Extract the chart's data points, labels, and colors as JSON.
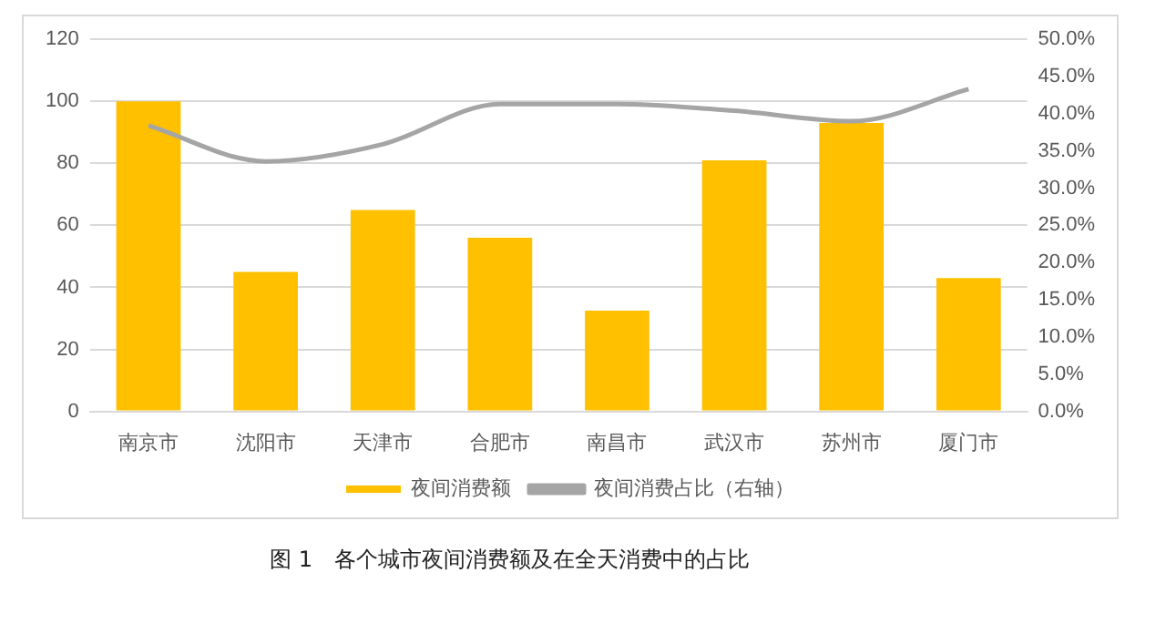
{
  "chart_data": {
    "type": "bar",
    "categories": [
      "南京市",
      "沈阳市",
      "天津市",
      "合肥市",
      "南昌市",
      "武汉市",
      "苏州市",
      "厦门市"
    ],
    "series": [
      {
        "name": "夜间消费额",
        "color": "#ffc000",
        "values": [
          100,
          45,
          65,
          56,
          32.5,
          81,
          93,
          43
        ]
      },
      {
        "name": "夜间消费占比（右轴）",
        "type": "line",
        "axis": "y2",
        "color": "#a5a5a5",
        "values": [
          38.4,
          33.6,
          35.9,
          41.3,
          41.3,
          40.4,
          39.0,
          43.3
        ]
      }
    ],
    "ylim": [
      0,
      120
    ],
    "yticks": [
      0,
      20,
      40,
      60,
      80,
      100,
      120
    ],
    "y2lim": [
      0,
      50
    ],
    "y2ticks": [
      {
        "value": 0,
        "label": "0.0%"
      },
      {
        "value": 5,
        "label": "5.0%"
      },
      {
        "value": 10,
        "label": "10.0%"
      },
      {
        "value": 15,
        "label": "15.0%"
      },
      {
        "value": 20,
        "label": "20.0%"
      },
      {
        "value": 25,
        "label": "25.0%"
      },
      {
        "value": 30,
        "label": "30.0%"
      },
      {
        "value": 35,
        "label": "35.0%"
      },
      {
        "value": 40,
        "label": "40.0%"
      },
      {
        "value": 45,
        "label": "45.0%"
      },
      {
        "value": 50,
        "label": "50.0%"
      }
    ],
    "grid": "y",
    "legend": "bottom",
    "marker": "none",
    "line_style": "solid",
    "annotations": [
      "图 1　各个城市夜间消费额及在全天消费中的占比"
    ]
  }
}
